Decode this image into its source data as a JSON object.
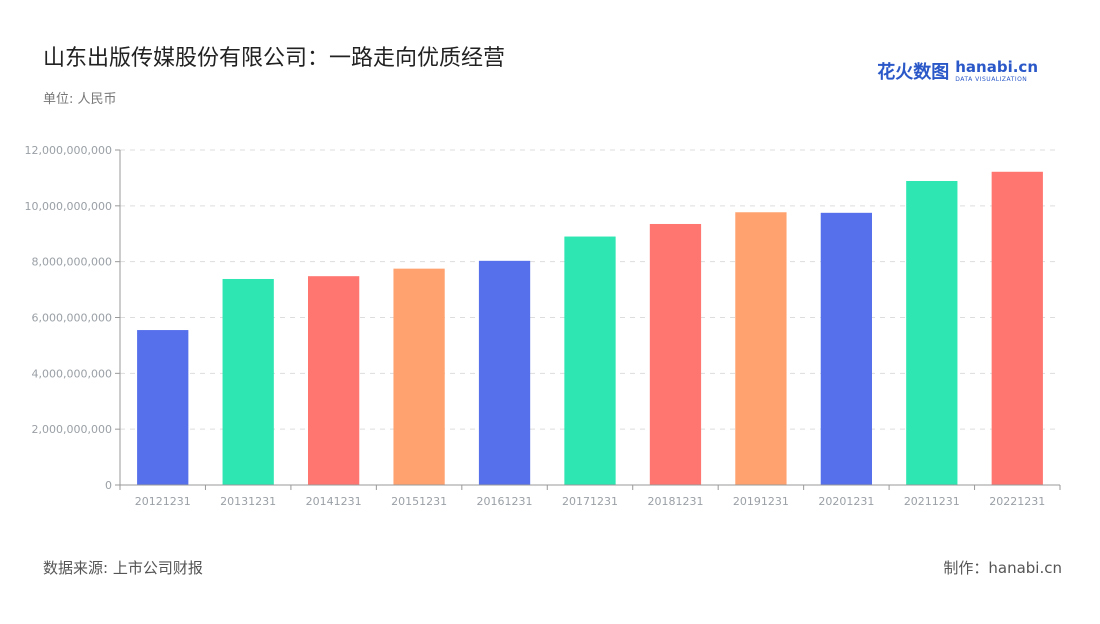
{
  "header": {
    "title": "山东出版传媒股份有限公司：一路走向优质经营",
    "unit": "单位: 人民币"
  },
  "brand": {
    "logo_mark": "花火数图",
    "logo_word": "hanabi.cn",
    "logo_tag": "DATA VISUALIZATION"
  },
  "footer": {
    "source": "数据来源: 上市公司财报",
    "made_by": "制作：hanabi.cn"
  },
  "colors": {
    "blue": "#5570ea",
    "green": "#2ee6b1",
    "red": "#ff7670",
    "orange": "#ffa270",
    "grid": "#dddddd",
    "axis": "#999999",
    "tick_text": "#9aa0a6"
  },
  "chart_data": {
    "type": "bar",
    "title": "山东出版传媒股份有限公司：一路走向优质经营",
    "categories": [
      "20121231",
      "20131231",
      "20141231",
      "20151231",
      "20161231",
      "20171231",
      "20181231",
      "20191231",
      "20201231",
      "20211231",
      "20221231"
    ],
    "values": [
      5550000000,
      7380000000,
      7480000000,
      7750000000,
      8030000000,
      8900000000,
      9350000000,
      9770000000,
      9750000000,
      10890000000,
      11220000000
    ],
    "bar_colors": [
      "#5570ea",
      "#2ee6b1",
      "#ff7670",
      "#ffa270",
      "#5570ea",
      "#2ee6b1",
      "#ff7670",
      "#ffa270",
      "#5570ea",
      "#2ee6b1",
      "#ff7670"
    ],
    "ylim": [
      0,
      12000000000
    ],
    "yticks": [
      0,
      2000000000,
      4000000000,
      6000000000,
      8000000000,
      10000000000,
      12000000000
    ],
    "ytick_labels": [
      "0",
      "2,000,000,000",
      "4,000,000,000",
      "6,000,000,000",
      "8,000,000,000",
      "10,000,000,000",
      "12,000,000,000"
    ],
    "grid": true,
    "legend": "none"
  }
}
